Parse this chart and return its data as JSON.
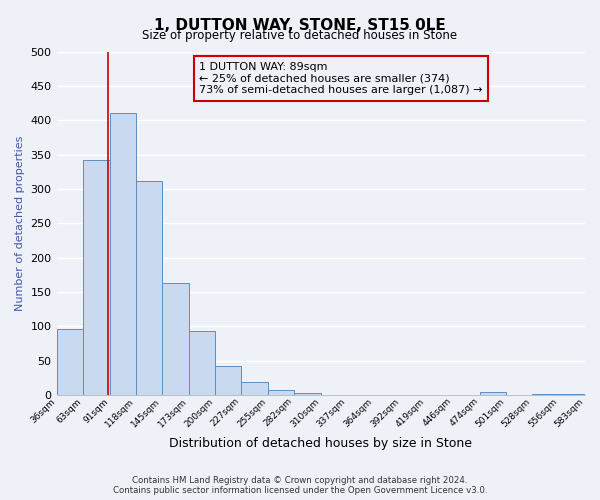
{
  "title": "1, DUTTON WAY, STONE, ST15 0LE",
  "subtitle": "Size of property relative to detached houses in Stone",
  "xlabel": "Distribution of detached houses by size in Stone",
  "ylabel": "Number of detached properties",
  "bin_edges": [
    36,
    63,
    91,
    118,
    145,
    173,
    200,
    227,
    255,
    282,
    310,
    337,
    364,
    392,
    419,
    446,
    474,
    501,
    528,
    556,
    583
  ],
  "bin_counts": [
    97,
    342,
    411,
    311,
    163,
    94,
    42,
    19,
    7,
    3,
    1,
    0,
    0,
    0,
    0,
    0,
    5,
    0,
    2,
    2
  ],
  "property_size": 89,
  "property_label": "1 DUTTON WAY: 89sqm",
  "annotation_line1": "← 25% of detached houses are smaller (374)",
  "annotation_line2": "73% of semi-detached houses are larger (1,087) →",
  "bar_color": "#c9d9f0",
  "bar_edge_color": "#5a8fc2",
  "vline_color": "#cc0000",
  "annotation_box_edge_color": "#cc0000",
  "ylim": [
    0,
    500
  ],
  "yticks": [
    0,
    50,
    100,
    150,
    200,
    250,
    300,
    350,
    400,
    450,
    500
  ],
  "tick_labels": [
    "36sqm",
    "63sqm",
    "91sqm",
    "118sqm",
    "145sqm",
    "173sqm",
    "200sqm",
    "227sqm",
    "255sqm",
    "282sqm",
    "310sqm",
    "337sqm",
    "364sqm",
    "392sqm",
    "419sqm",
    "446sqm",
    "474sqm",
    "501sqm",
    "528sqm",
    "556sqm",
    "583sqm"
  ],
  "footer_line1": "Contains HM Land Registry data © Crown copyright and database right 2024.",
  "footer_line2": "Contains public sector information licensed under the Open Government Licence v3.0.",
  "background_color": "#eef2f8",
  "grid_color": "#ffffff"
}
